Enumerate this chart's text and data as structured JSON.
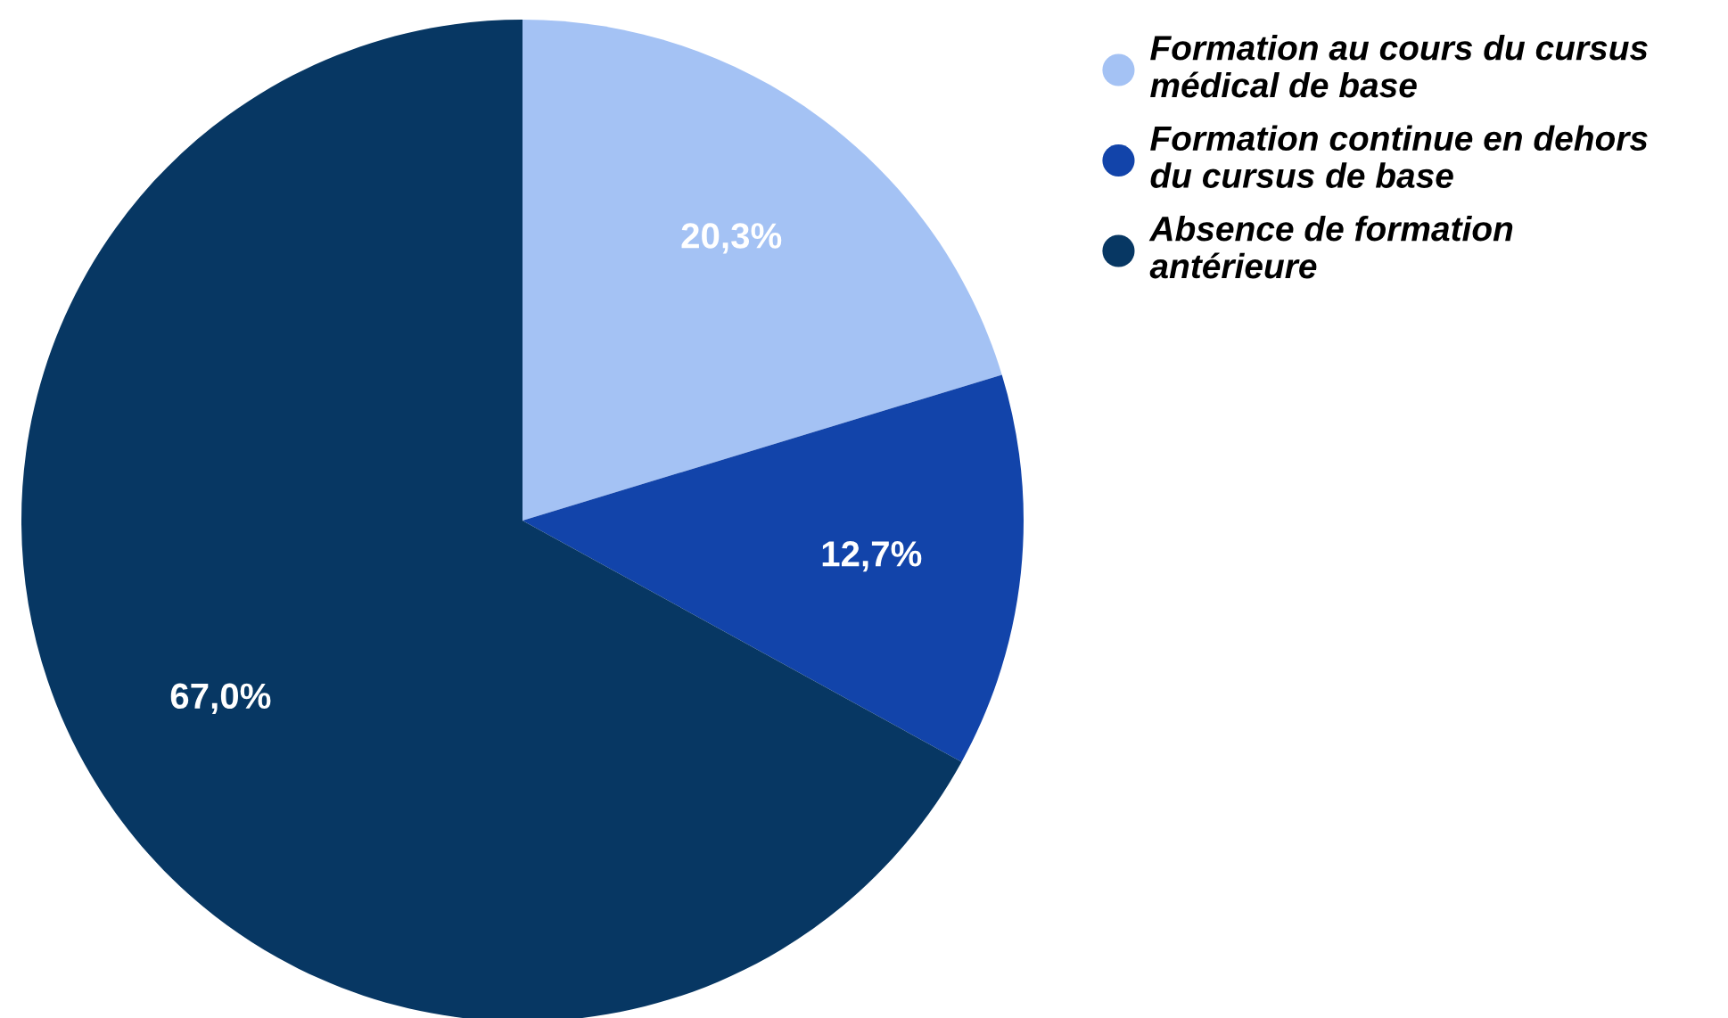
{
  "chart_data": {
    "type": "pie",
    "categories": [
      "Formation au cours du cursus\nmédical de base",
      "Formation continue en dehors\ndu cursus de base",
      "Absence de formation\nantérieure"
    ],
    "values": [
      20.3,
      12.7,
      67.0
    ],
    "colors": [
      "#a4c2f4",
      "#1244aa",
      "#073763"
    ],
    "value_labels": [
      "20,3%",
      "12,7%",
      "67,0%"
    ],
    "legend": "top right"
  }
}
